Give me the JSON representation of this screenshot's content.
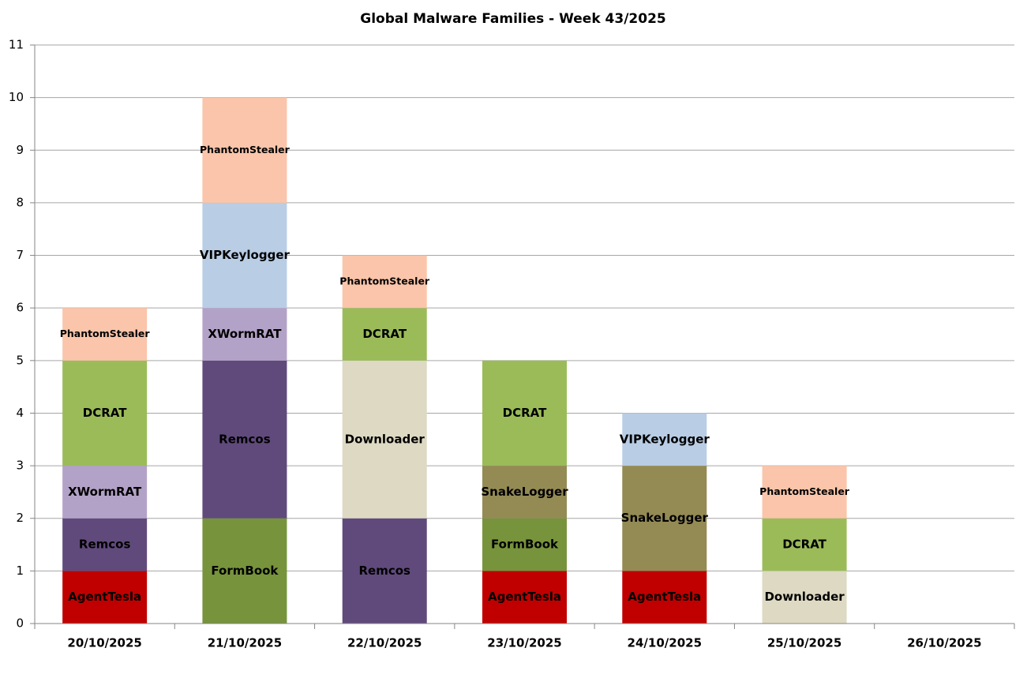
{
  "chart_data": {
    "type": "stacked-bar",
    "title": "Global Malware Families - Week 43/2025",
    "categories": [
      "20/10/2025",
      "21/10/2025",
      "22/10/2025",
      "23/10/2025",
      "24/10/2025",
      "25/10/2025",
      "26/10/2025"
    ],
    "series": [
      {
        "name": "AgentTesla",
        "color": "#c00000",
        "values": [
          1,
          null,
          null,
          1,
          1,
          null,
          null
        ]
      },
      {
        "name": "FormBook",
        "color": "#77933c",
        "values": [
          null,
          2,
          null,
          1,
          null,
          null,
          null
        ]
      },
      {
        "name": "Remcos",
        "color": "#604a7b",
        "values": [
          1,
          3,
          2,
          null,
          null,
          null,
          null
        ]
      },
      {
        "name": "Downloader",
        "color": "#ddd9c3",
        "values": [
          null,
          null,
          3,
          null,
          null,
          1,
          null
        ]
      },
      {
        "name": "SnakeLogger",
        "color": "#948a54",
        "values": [
          null,
          null,
          null,
          1,
          2,
          null,
          null
        ]
      },
      {
        "name": "XWormRAT",
        "color": "#b3a2c7",
        "values": [
          1,
          1,
          null,
          null,
          null,
          null,
          null
        ]
      },
      {
        "name": "DCRAT",
        "color": "#9bbb59",
        "values": [
          2,
          null,
          1,
          2,
          null,
          1,
          null
        ]
      },
      {
        "name": "VIPKeylogger",
        "color": "#b9cde5",
        "values": [
          null,
          2,
          null,
          null,
          1,
          null,
          null
        ]
      },
      {
        "name": "PhantomStealer",
        "color": "#fac5aa",
        "values": [
          1,
          2,
          1,
          null,
          null,
          1,
          null
        ]
      }
    ],
    "ylim": [
      0,
      11
    ],
    "yticks": [
      0,
      1,
      2,
      3,
      4,
      5,
      6,
      7,
      8,
      9,
      10,
      11
    ],
    "grid": true
  }
}
